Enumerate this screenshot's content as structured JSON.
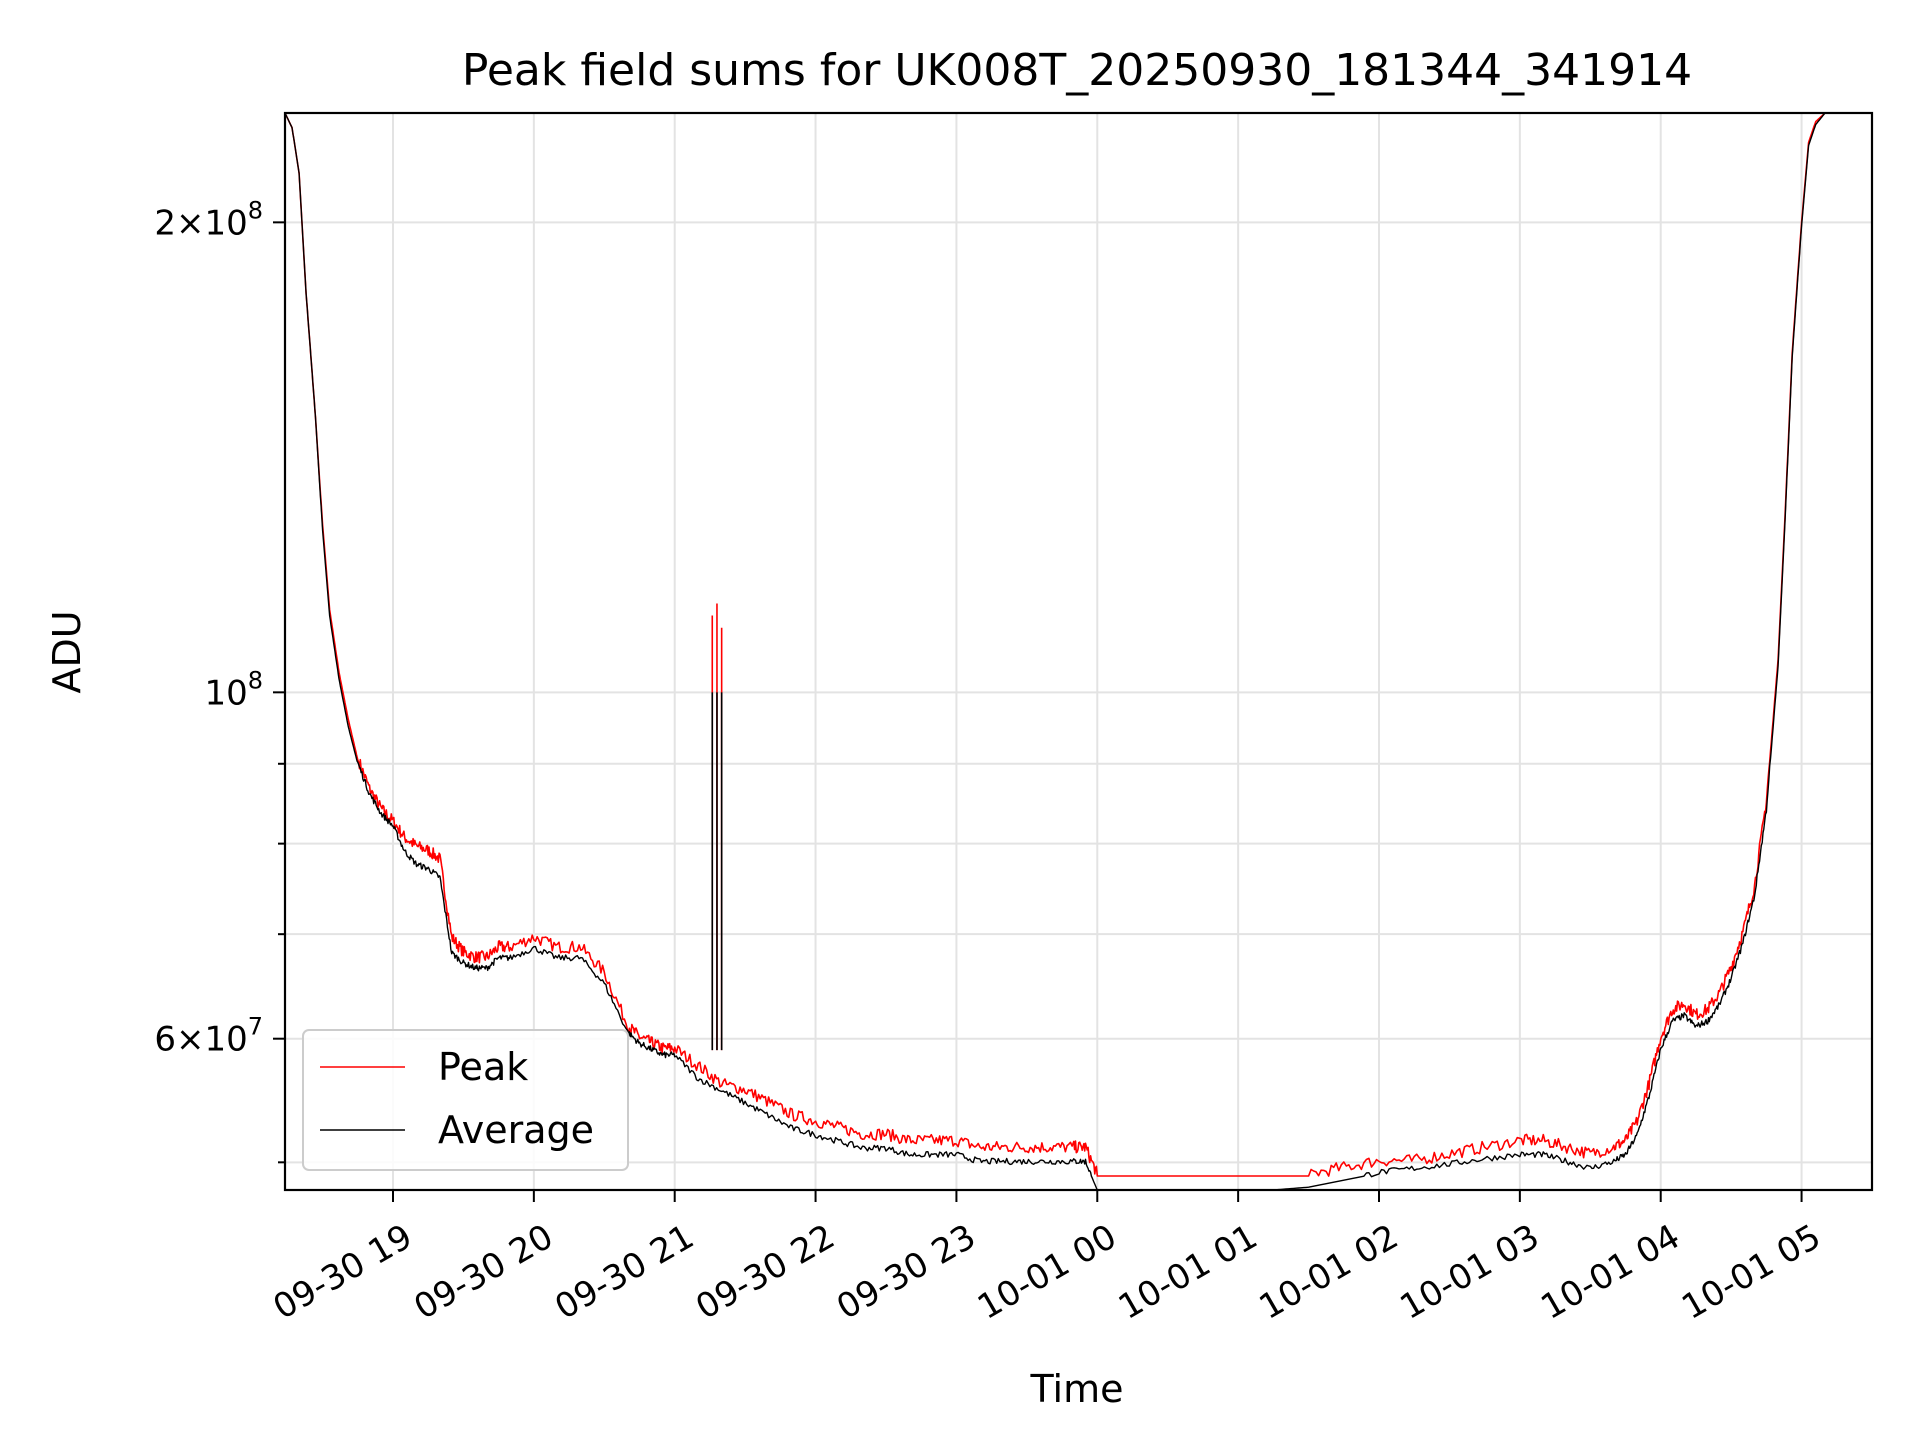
{
  "chart_data": {
    "type": "line",
    "title": "Peak field sums for UK008T_20250930_181344_341914",
    "xlabel": "Time",
    "ylabel": "ADU",
    "yscale": "log",
    "grid": true,
    "legend_position": "lower-left",
    "x_ticks": [
      "09-30 19",
      "09-30 20",
      "09-30 21",
      "09-30 22",
      "09-30 23",
      "10-01 00",
      "10-01 01",
      "10-01 02",
      "10-01 03",
      "10-01 04",
      "10-01 05"
    ],
    "xlim": [
      "2025-09-30 18:14",
      "2025-10-01 05:30"
    ],
    "ylim": [
      48000000,
      235000000
    ],
    "y_ticks": [
      {
        "value": 200000000,
        "mant": "2",
        "exp": "8"
      },
      {
        "value": 100000000,
        "mant": "",
        "exp": "8"
      },
      {
        "value": 60000000,
        "mant": "6",
        "exp": "7"
      }
    ],
    "y_minor_ticks": [
      50000000,
      70000000,
      80000000,
      90000000
    ],
    "series": [
      {
        "name": "Peak",
        "color": "#ff0000",
        "x": [
          "2025-09-30 18:14",
          "2025-09-30 18:17",
          "2025-09-30 18:20",
          "2025-09-30 18:23",
          "2025-09-30 18:27",
          "2025-09-30 18:30",
          "2025-09-30 18:33",
          "2025-09-30 18:37",
          "2025-09-30 18:41",
          "2025-09-30 18:45",
          "2025-09-30 18:50",
          "2025-09-30 18:55",
          "2025-09-30 19:00",
          "2025-09-30 19:05",
          "2025-09-30 19:10",
          "2025-09-30 19:15",
          "2025-09-30 19:20",
          "2025-09-30 19:25",
          "2025-09-30 19:30",
          "2025-09-30 19:35",
          "2025-09-30 19:40",
          "2025-09-30 19:45",
          "2025-09-30 19:50",
          "2025-09-30 20:00",
          "2025-09-30 20:10",
          "2025-09-30 20:20",
          "2025-09-30 20:30",
          "2025-09-30 20:40",
          "2025-09-30 20:45",
          "2025-09-30 20:50",
          "2025-09-30 20:55",
          "2025-09-30 21:00",
          "2025-09-30 21:10",
          "2025-09-30 21:20",
          "2025-09-30 21:30",
          "2025-09-30 21:40",
          "2025-09-30 21:50",
          "2025-09-30 22:00",
          "2025-09-30 22:10",
          "2025-09-30 22:20",
          "2025-09-30 22:30",
          "2025-09-30 22:40",
          "2025-09-30 22:50",
          "2025-09-30 23:00",
          "2025-09-30 23:10",
          "2025-09-30 23:20",
          "2025-09-30 23:30",
          "2025-09-30 23:40",
          "2025-09-30 23:50",
          "2025-09-30 23:55",
          "2025-10-01 00:00",
          "2025-10-01 00:15",
          "2025-10-01 00:30",
          "2025-10-01 00:45",
          "2025-10-01 01:00",
          "2025-10-01 01:15",
          "2025-10-01 01:30",
          "2025-10-01 01:45",
          "2025-10-01 02:00",
          "2025-10-01 02:15",
          "2025-10-01 02:30",
          "2025-10-01 02:45",
          "2025-10-01 03:00",
          "2025-10-01 03:10",
          "2025-10-01 03:20",
          "2025-10-01 03:30",
          "2025-10-01 03:40",
          "2025-10-01 03:45",
          "2025-10-01 03:50",
          "2025-10-01 03:55",
          "2025-10-01 04:00",
          "2025-10-01 04:05",
          "2025-10-01 04:10",
          "2025-10-01 04:15",
          "2025-10-01 04:20",
          "2025-10-01 04:25",
          "2025-10-01 04:30",
          "2025-10-01 04:35",
          "2025-10-01 04:40",
          "2025-10-01 04:45",
          "2025-10-01 04:50",
          "2025-10-01 04:53",
          "2025-10-01 04:56",
          "2025-10-01 05:00",
          "2025-10-01 05:03",
          "2025-10-01 05:06",
          "2025-10-01 05:10",
          "2025-10-01 05:14",
          "2025-10-01 05:18",
          "2025-10-01 05:22",
          "2025-10-01 05:30"
        ],
        "y": [
          235000000,
          230000000,
          215000000,
          180000000,
          150000000,
          128000000,
          113000000,
          103000000,
          96000000,
          90500000,
          86500000,
          84000000,
          82500000,
          80500000,
          79500000,
          79000000,
          78000000,
          69500000,
          68000000,
          67500000,
          67500000,
          68500000,
          68500000,
          69500000,
          68500000,
          68500000,
          66000000,
          61000000,
          60000000,
          59500000,
          59000000,
          59000000,
          57500000,
          56000000,
          55500000,
          54500000,
          53500000,
          53000000,
          52500000,
          52000000,
          52000000,
          51500000,
          51500000,
          51500000,
          51000000,
          51000000,
          51000000,
          51000000,
          51000000,
          51000000,
          49000000,
          49000000,
          49000000,
          49000000,
          49000000,
          49000000,
          49000000,
          49500000,
          50000000,
          50000000,
          50500000,
          51000000,
          51500000,
          51500000,
          51000000,
          50500000,
          51000000,
          51500000,
          53000000,
          56000000,
          60000000,
          62500000,
          63000000,
          62000000,
          62500000,
          64000000,
          66500000,
          70000000,
          75000000,
          85000000,
          105000000,
          130000000,
          165000000,
          200000000,
          225000000,
          232000000,
          235000000,
          235000000,
          235000000,
          235000000,
          235000000
        ]
      },
      {
        "name": "Average",
        "color": "#000000",
        "x": [
          "2025-09-30 18:14",
          "2025-09-30 18:17",
          "2025-09-30 18:20",
          "2025-09-30 18:23",
          "2025-09-30 18:27",
          "2025-09-30 18:30",
          "2025-09-30 18:33",
          "2025-09-30 18:37",
          "2025-09-30 18:41",
          "2025-09-30 18:45",
          "2025-09-30 18:50",
          "2025-09-30 18:55",
          "2025-09-30 19:00",
          "2025-09-30 19:05",
          "2025-09-30 19:10",
          "2025-09-30 19:15",
          "2025-09-30 19:20",
          "2025-09-30 19:25",
          "2025-09-30 19:30",
          "2025-09-30 19:35",
          "2025-09-30 19:40",
          "2025-09-30 19:45",
          "2025-09-30 19:50",
          "2025-09-30 20:00",
          "2025-09-30 20:10",
          "2025-09-30 20:20",
          "2025-09-30 20:30",
          "2025-09-30 20:40",
          "2025-09-30 20:45",
          "2025-09-30 20:50",
          "2025-09-30 20:55",
          "2025-09-30 21:00",
          "2025-09-30 21:10",
          "2025-09-30 21:20",
          "2025-09-30 21:30",
          "2025-09-30 21:40",
          "2025-09-30 21:50",
          "2025-09-30 22:00",
          "2025-09-30 22:10",
          "2025-09-30 22:20",
          "2025-09-30 22:30",
          "2025-09-30 22:40",
          "2025-09-30 22:50",
          "2025-09-30 23:00",
          "2025-09-30 23:10",
          "2025-09-30 23:20",
          "2025-09-30 23:30",
          "2025-09-30 23:40",
          "2025-09-30 23:50",
          "2025-09-30 23:55",
          "2025-10-01 00:00",
          "2025-10-01 00:15",
          "2025-10-01 00:30",
          "2025-10-01 00:45",
          "2025-10-01 01:00",
          "2025-10-01 01:15",
          "2025-10-01 01:30",
          "2025-10-01 01:45",
          "2025-10-01 02:00",
          "2025-10-01 02:15",
          "2025-10-01 02:30",
          "2025-10-01 02:45",
          "2025-10-01 03:00",
          "2025-10-01 03:10",
          "2025-10-01 03:20",
          "2025-10-01 03:30",
          "2025-10-01 03:40",
          "2025-10-01 03:45",
          "2025-10-01 03:50",
          "2025-10-01 03:55",
          "2025-10-01 04:00",
          "2025-10-01 04:05",
          "2025-10-01 04:10",
          "2025-10-01 04:15",
          "2025-10-01 04:20",
          "2025-10-01 04:25",
          "2025-10-01 04:30",
          "2025-10-01 04:35",
          "2025-10-01 04:40",
          "2025-10-01 04:45",
          "2025-10-01 04:50",
          "2025-10-01 04:53",
          "2025-10-01 04:56",
          "2025-10-01 05:00",
          "2025-10-01 05:03",
          "2025-10-01 05:06",
          "2025-10-01 05:10",
          "2025-10-01 05:14",
          "2025-10-01 05:18",
          "2025-10-01 05:22",
          "2025-10-01 05:30"
        ],
        "y": [
          235000000,
          230000000,
          215000000,
          180000000,
          150000000,
          127000000,
          112000000,
          102000000,
          95000000,
          90000000,
          86000000,
          83500000,
          82000000,
          79000000,
          77500000,
          77000000,
          76000000,
          68000000,
          67000000,
          66500000,
          66500000,
          67500000,
          67500000,
          68500000,
          67500000,
          67500000,
          65000000,
          60500000,
          59500000,
          59000000,
          58500000,
          58500000,
          56500000,
          55500000,
          54500000,
          53500000,
          52500000,
          52000000,
          51500000,
          51000000,
          51000000,
          50500000,
          50500000,
          50500000,
          50000000,
          50000000,
          50000000,
          50000000,
          50000000,
          50000000,
          48000000,
          48000000,
          48000000,
          48000000,
          48000000,
          48000000,
          48200000,
          48700000,
          49200000,
          49500000,
          49800000,
          50200000,
          50500000,
          50500000,
          50000000,
          49500000,
          50000000,
          50500000,
          52000000,
          55000000,
          59000000,
          61500000,
          62000000,
          61000000,
          61500000,
          63000000,
          65500000,
          69000000,
          74000000,
          84000000,
          104000000,
          129000000,
          164000000,
          199000000,
          224000000,
          231000000,
          235000000,
          235000000,
          235000000,
          235000000,
          235000000
        ]
      }
    ],
    "spikes": [
      {
        "x": "2025-09-30 21:16",
        "peak": 112000000,
        "average": 100000000
      },
      {
        "x": "2025-09-30 21:18",
        "peak": 114000000,
        "average": 100000000
      },
      {
        "x": "2025-09-30 21:20",
        "peak": 110000000,
        "average": 100000000
      }
    ]
  }
}
